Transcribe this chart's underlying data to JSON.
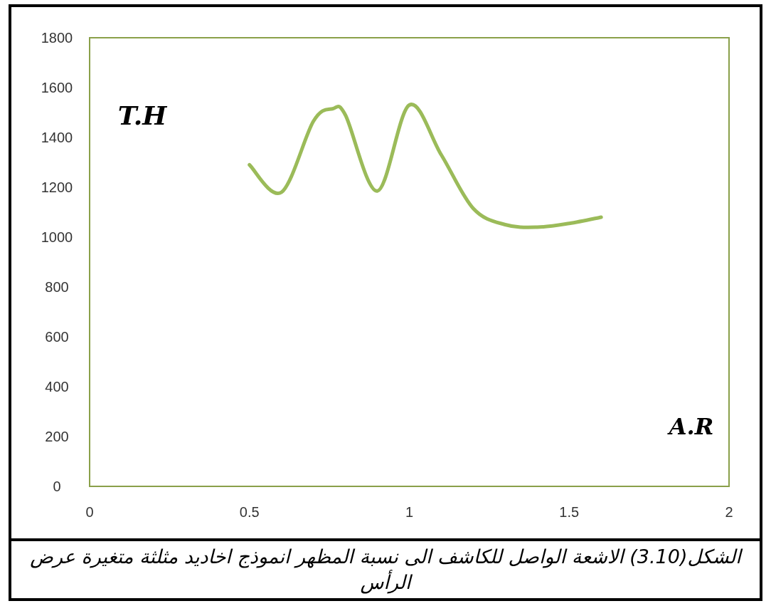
{
  "chart_data": {
    "type": "line",
    "xlabel": "A.R",
    "ylabel": "T.H",
    "annotations": [
      "الشكل(3.10)  الاشعة الواصل للكاشف الى نسبة المظهر انموذج اخاديد مثلثة متغيرة عرض الرأس"
    ],
    "x": [
      0.5,
      0.6,
      0.7,
      0.76,
      0.8,
      0.9,
      1.0,
      1.1,
      1.2,
      1.3,
      1.4,
      1.5,
      1.6
    ],
    "series": [
      {
        "color": "#9bbb59",
        "values": [
          1290,
          1180,
          1465,
          1515,
          1490,
          1185,
          1530,
          1330,
          1115,
          1050,
          1040,
          1055,
          1080
        ]
      }
    ],
    "xlim": [
      0,
      2
    ],
    "ylim": [
      0,
      1800
    ],
    "xticks": [
      0,
      0.5,
      1,
      1.5,
      2
    ],
    "yticks": [
      0,
      200,
      400,
      600,
      800,
      1000,
      1200,
      1400,
      1600,
      1800
    ]
  }
}
